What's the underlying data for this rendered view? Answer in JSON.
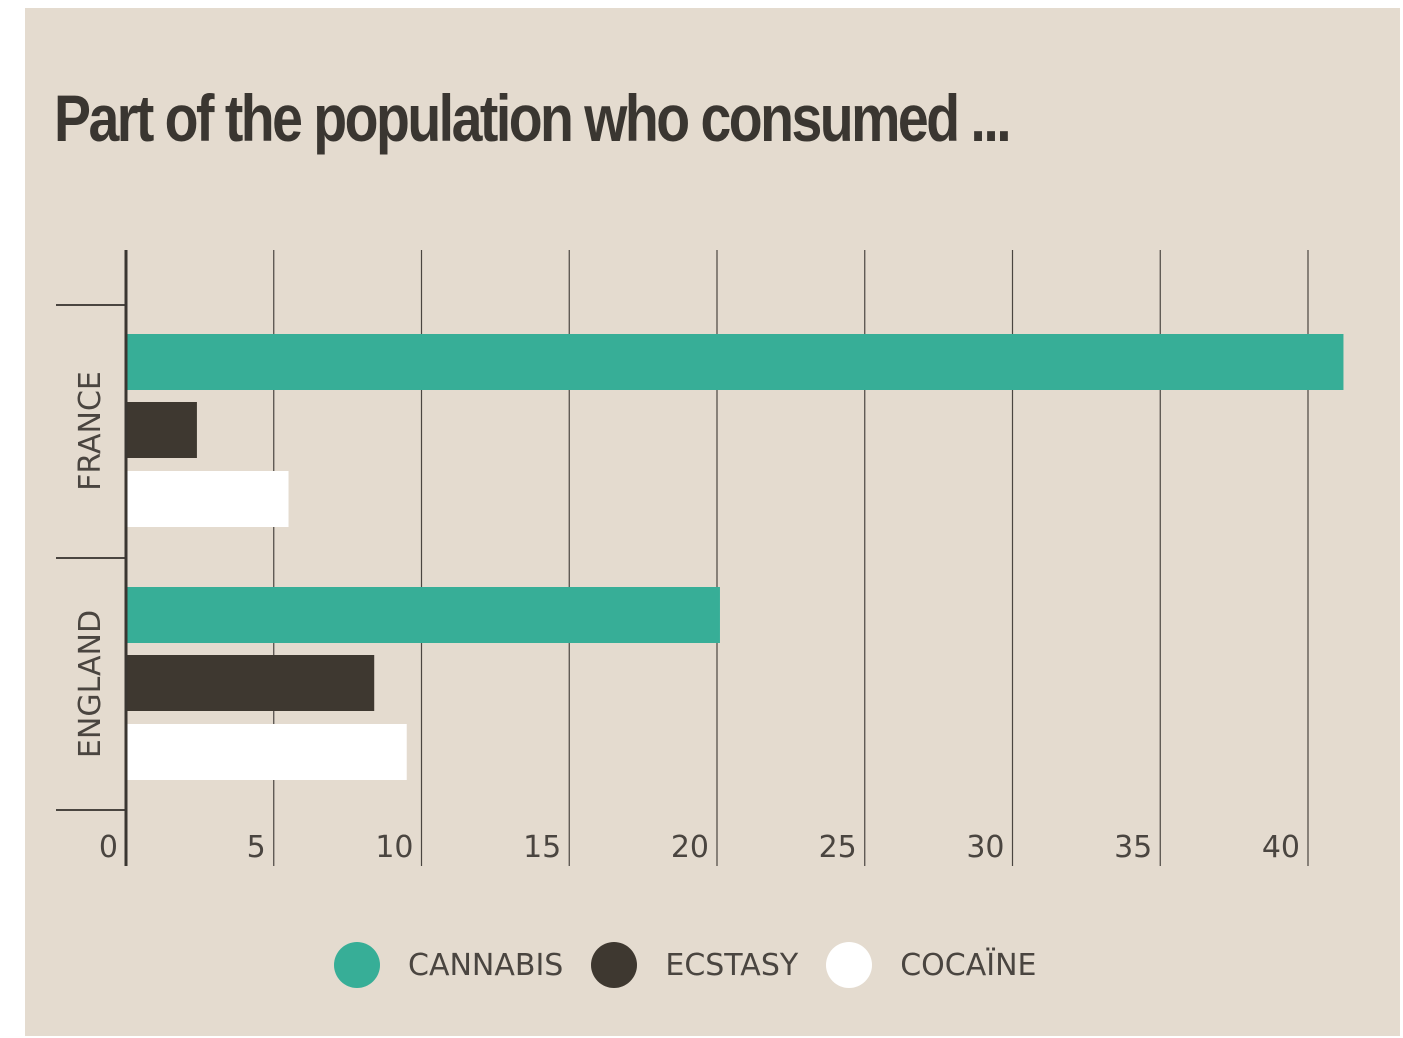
{
  "chart_data": {
    "type": "bar",
    "orientation": "horizontal",
    "title": "Part of the population who consumed ...",
    "categories": [
      "FRANCE",
      "ENGLAND"
    ],
    "series": [
      {
        "name": "CANNABIS",
        "color": "#37ae97",
        "values": [
          41.2,
          20.1
        ]
      },
      {
        "name": "ECSTASY",
        "color": "#3e3830",
        "values": [
          2.4,
          8.4
        ]
      },
      {
        "name": "COCAÏNE",
        "color": "#ffffff",
        "values": [
          5.5,
          9.5
        ]
      }
    ],
    "xticks": [
      0,
      5,
      10,
      15,
      20,
      25,
      30,
      35,
      40
    ],
    "xlim": [
      0,
      40
    ],
    "grid": true,
    "legend_position": "bottom"
  }
}
